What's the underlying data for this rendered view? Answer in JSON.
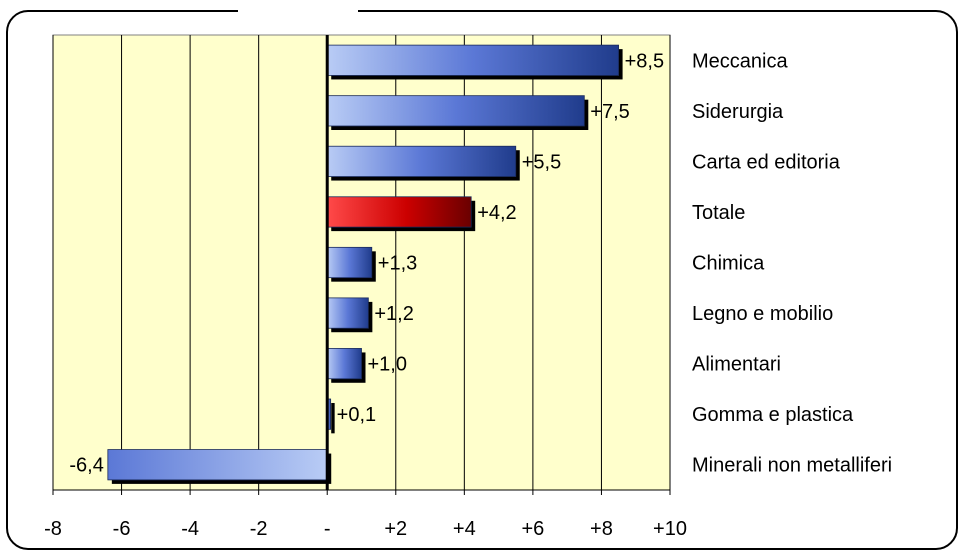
{
  "chart_data": {
    "type": "bar",
    "orientation": "horizontal",
    "title": "",
    "categories": [
      "Meccanica",
      "Siderurgia",
      "Carta ed editoria",
      "Totale",
      "Chimica",
      "Legno e mobilio",
      "Alimentari",
      "Gomma e plastica",
      "Minerali non metalliferi"
    ],
    "values": [
      8.5,
      7.5,
      5.5,
      4.2,
      1.3,
      1.2,
      1.0,
      0.1,
      -6.4
    ],
    "value_labels": [
      "+8,5",
      "+7,5",
      "+5,5",
      "+4,2",
      "+1,3",
      "+1,2",
      "+1,0",
      "+0,1",
      "-6,4"
    ],
    "highlight_category": "Totale",
    "xlim": [
      -8,
      10
    ],
    "xticks": [
      -8,
      -6,
      -4,
      -2,
      0,
      2,
      4,
      6,
      8,
      10
    ],
    "xtick_labels": [
      "-8",
      "-6",
      "-4",
      "-2",
      "-",
      "+2",
      "+4",
      "+6",
      "+8",
      "+10"
    ],
    "grid": true,
    "colors": {
      "bar": "#5b78d6",
      "bar_light": "#b9ccf5",
      "bar_dark": "#203c8c",
      "highlight": "#cc0000",
      "highlight_light": "#ff4a4a",
      "highlight_dark": "#6a0000",
      "plot_bg": "#ffffcc",
      "grid": "#000000"
    }
  }
}
